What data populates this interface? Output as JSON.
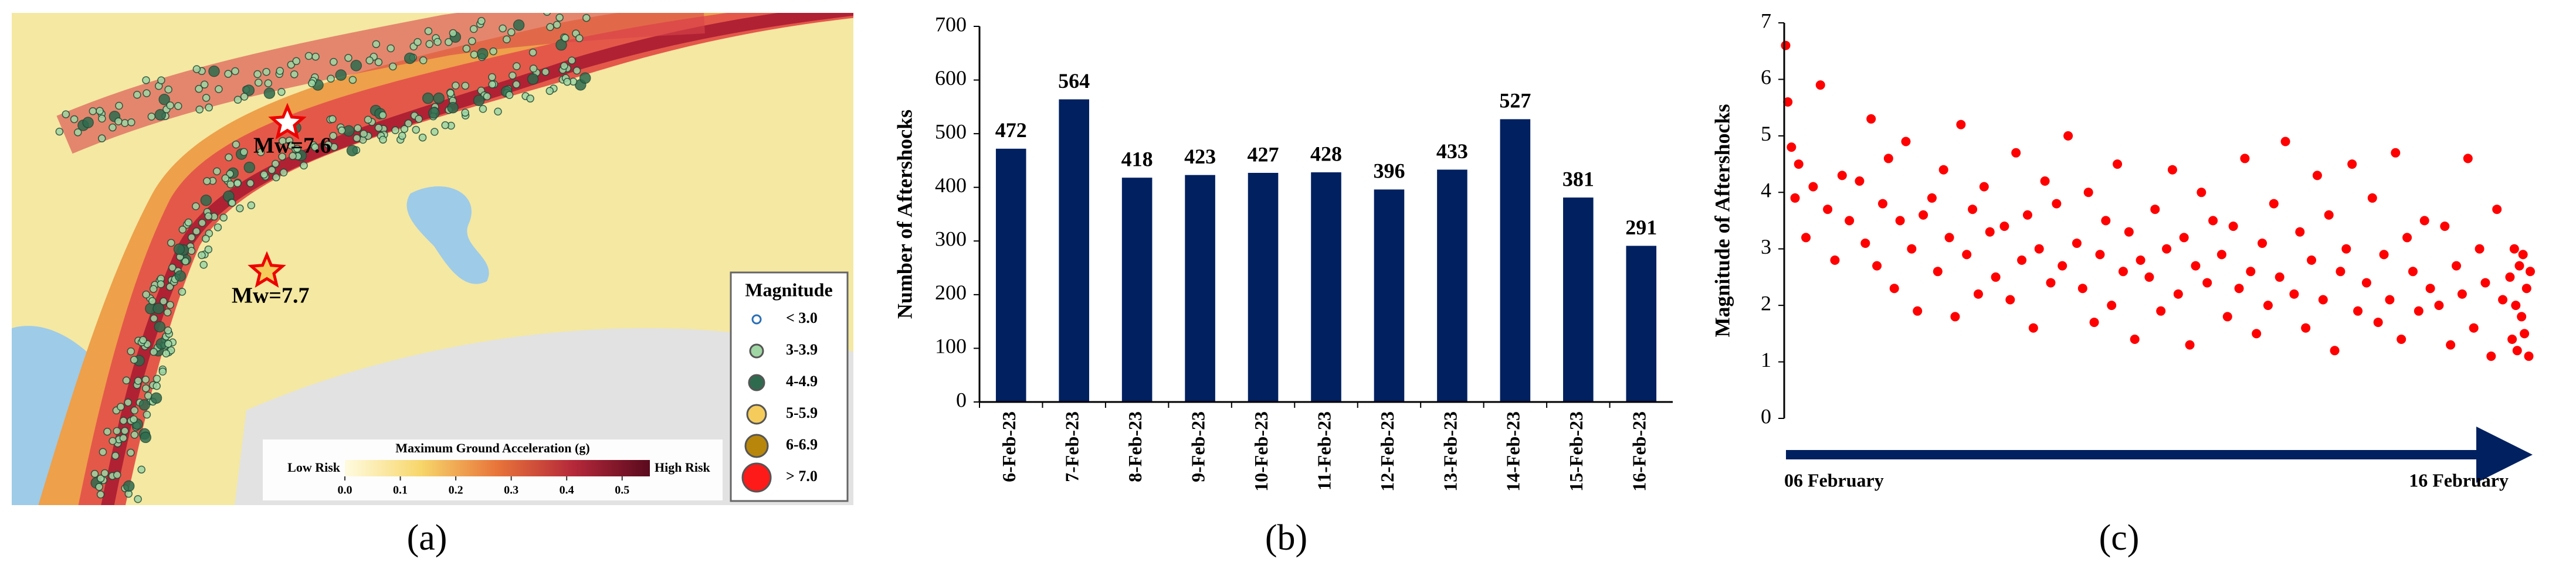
{
  "panel_labels": [
    "(a)",
    "(b)",
    "(c)"
  ],
  "map": {
    "epicenters": [
      {
        "label": "Mw=7.6"
      },
      {
        "label": "Mw=7.7"
      }
    ],
    "legend_title": "Magnitude",
    "legend": [
      {
        "label": "< 3.0",
        "color": "#ffffff"
      },
      {
        "label": "3-3.9",
        "color": "#9fd6a4"
      },
      {
        "label": "4-4.9",
        "color": "#2e6b4e"
      },
      {
        "label": "5-5.9",
        "color": "#f5cc5c"
      },
      {
        "label": "6-6.9",
        "color": "#b8860b"
      },
      {
        "label": "> 7.0",
        "color": "#ff1a1a"
      }
    ],
    "colorbar": {
      "title": "Maximum Ground Acceleration (g)",
      "low": "Low Risk",
      "high": "High Risk",
      "lim": [
        0,
        0.55
      ],
      "ticks": [
        {
          "value": 0,
          "label": "0.0"
        },
        0.1,
        0.2,
        0.3,
        0.4,
        0.5
      ]
    }
  },
  "chart_data": [
    {
      "type": "bar",
      "y_label": "Number of Aftershocks",
      "color": "#002060",
      "categories": [
        "6-Feb-23",
        "7-Feb-23",
        "8-Feb-23",
        "9-Feb-23",
        "10-Feb-23",
        "11-Feb-23",
        "12-Feb-23",
        "13-Feb-23",
        "14-Feb-23",
        "15-Feb-23",
        "16-Feb-23"
      ],
      "values": [
        472,
        564,
        418,
        423,
        427,
        428,
        396,
        433,
        527,
        381,
        291
      ],
      "ylim": [
        0,
        700
      ],
      "yticks": [
        0,
        100,
        200,
        300,
        400,
        500,
        600,
        700
      ]
    },
    {
      "type": "scatter",
      "y_label": "Magnitude of Aftershocks",
      "color": "#ff0000",
      "xlim": [
        6,
        16.3
      ],
      "xticks": [
        {
          "value": 6,
          "label": "06 February"
        },
        {
          "value": 16,
          "label": "16 February"
        }
      ],
      "ylim": [
        0,
        7
      ],
      "yticks": [
        0,
        1,
        2,
        3,
        4,
        5,
        6,
        7
      ],
      "x": [
        6.02,
        6.05,
        6.1,
        6.15,
        6.2,
        6.3,
        6.4,
        6.5,
        6.6,
        6.7,
        6.8,
        6.9,
        7.04,
        7.12,
        7.2,
        7.28,
        7.36,
        7.44,
        7.52,
        7.6,
        7.68,
        7.76,
        7.84,
        7.92,
        8.04,
        8.12,
        8.2,
        8.28,
        8.36,
        8.44,
        8.52,
        8.6,
        8.68,
        8.76,
        8.84,
        8.92,
        9.04,
        9.12,
        9.2,
        9.28,
        9.36,
        9.44,
        9.52,
        9.6,
        9.68,
        9.76,
        9.84,
        9.92,
        10.04,
        10.12,
        10.2,
        10.28,
        10.36,
        10.44,
        10.52,
        10.6,
        10.68,
        10.76,
        10.84,
        10.92,
        11.04,
        11.12,
        11.2,
        11.28,
        11.36,
        11.44,
        11.52,
        11.6,
        11.68,
        11.76,
        11.84,
        11.92,
        12.04,
        12.12,
        12.2,
        12.28,
        12.36,
        12.44,
        12.52,
        12.6,
        12.68,
        12.76,
        12.84,
        12.92,
        13.04,
        13.12,
        13.2,
        13.28,
        13.36,
        13.44,
        13.52,
        13.6,
        13.68,
        13.76,
        13.84,
        13.92,
        14.04,
        14.12,
        14.2,
        14.28,
        14.36,
        14.44,
        14.52,
        14.6,
        14.68,
        14.76,
        14.84,
        14.92,
        15.04,
        15.12,
        15.2,
        15.28,
        15.36,
        15.44,
        15.52,
        15.6,
        15.68,
        15.76,
        15.84,
        15.92,
        16.02,
        16.05,
        16.08,
        16.1,
        16.12,
        16.15,
        16.18,
        16.2,
        16.22,
        16.25,
        16.28,
        16.3
      ],
      "y": [
        6.6,
        5.6,
        4.8,
        3.9,
        4.5,
        3.2,
        4.1,
        5.9,
        3.7,
        2.8,
        4.3,
        3.5,
        4.2,
        3.1,
        5.3,
        2.7,
        3.8,
        4.6,
        2.3,
        3.5,
        4.9,
        3.0,
        1.9,
        3.6,
        3.9,
        2.6,
        4.4,
        3.2,
        1.8,
        5.2,
        2.9,
        3.7,
        2.2,
        4.1,
        3.3,
        2.5,
        3.4,
        2.1,
        4.7,
        2.8,
        3.6,
        1.6,
        3.0,
        4.2,
        2.4,
        3.8,
        2.7,
        5.0,
        3.1,
        2.3,
        4.0,
        1.7,
        2.9,
        3.5,
        2.0,
        4.5,
        2.6,
        3.3,
        1.4,
        2.8,
        2.5,
        3.7,
        1.9,
        3.0,
        4.4,
        2.2,
        3.2,
        1.3,
        2.7,
        4.0,
        2.4,
        3.5,
        2.9,
        1.8,
        3.4,
        2.3,
        4.6,
        2.6,
        1.5,
        3.1,
        2.0,
        3.8,
        2.5,
        4.9,
        2.2,
        3.3,
        1.6,
        2.8,
        4.3,
        2.1,
        3.6,
        1.2,
        2.6,
        3.0,
        4.5,
        1.9,
        2.4,
        3.9,
        1.7,
        2.9,
        2.1,
        4.7,
        1.4,
        3.2,
        2.6,
        1.9,
        3.5,
        2.3,
        2.0,
        3.4,
        1.3,
        2.7,
        2.2,
        4.6,
        1.6,
        3.0,
        2.4,
        1.1,
        3.7,
        2.1,
        2.5,
        1.4,
        3.0,
        2.0,
        1.2,
        2.7,
        1.8,
        2.9,
        1.5,
        2.3,
        1.1,
        2.6
      ]
    }
  ]
}
